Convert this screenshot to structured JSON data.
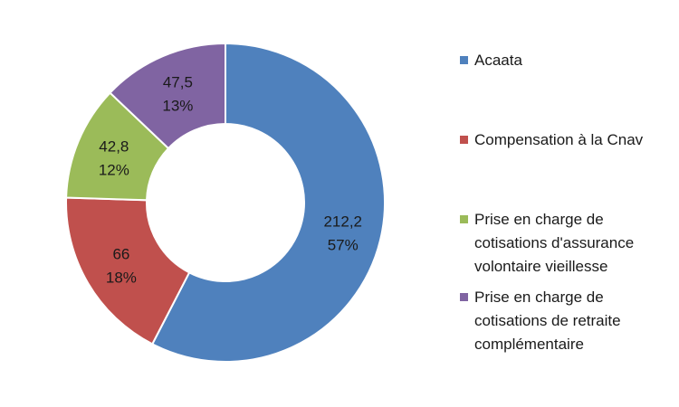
{
  "chart_data": {
    "type": "pie",
    "variant": "donut",
    "title": "",
    "series": [
      {
        "categories": [
          "Acaata",
          "Compensation à la Cnav",
          "Prise en charge de cotisations d'assurance volontaire vieillesse",
          "Prise en charge de cotisations de retraite complémentaire"
        ],
        "values": [
          212.2,
          66,
          42.8,
          47.5
        ],
        "value_labels": [
          "212,2",
          "66",
          "42,8",
          "47,5"
        ],
        "percent_labels": [
          "57%",
          "18%",
          "12%",
          "13%"
        ],
        "colors": [
          "#4f81bd",
          "#c0504d",
          "#9bbb59",
          "#8064a2"
        ]
      }
    ],
    "legend": {
      "position": "right",
      "entries": [
        {
          "lines": [
            "Acaata"
          ],
          "color": "#4f81bd"
        },
        {
          "lines": [
            "Compensation à la Cnav"
          ],
          "color": "#c0504d"
        },
        {
          "lines": [
            "Prise en charge de",
            "cotisations d'assurance",
            "volontaire vieillesse"
          ],
          "color": "#9bbb59"
        },
        {
          "lines": [
            "Prise en charge de",
            "cotisations de retraite",
            "complémentaire"
          ],
          "color": "#8064a2"
        }
      ]
    }
  }
}
